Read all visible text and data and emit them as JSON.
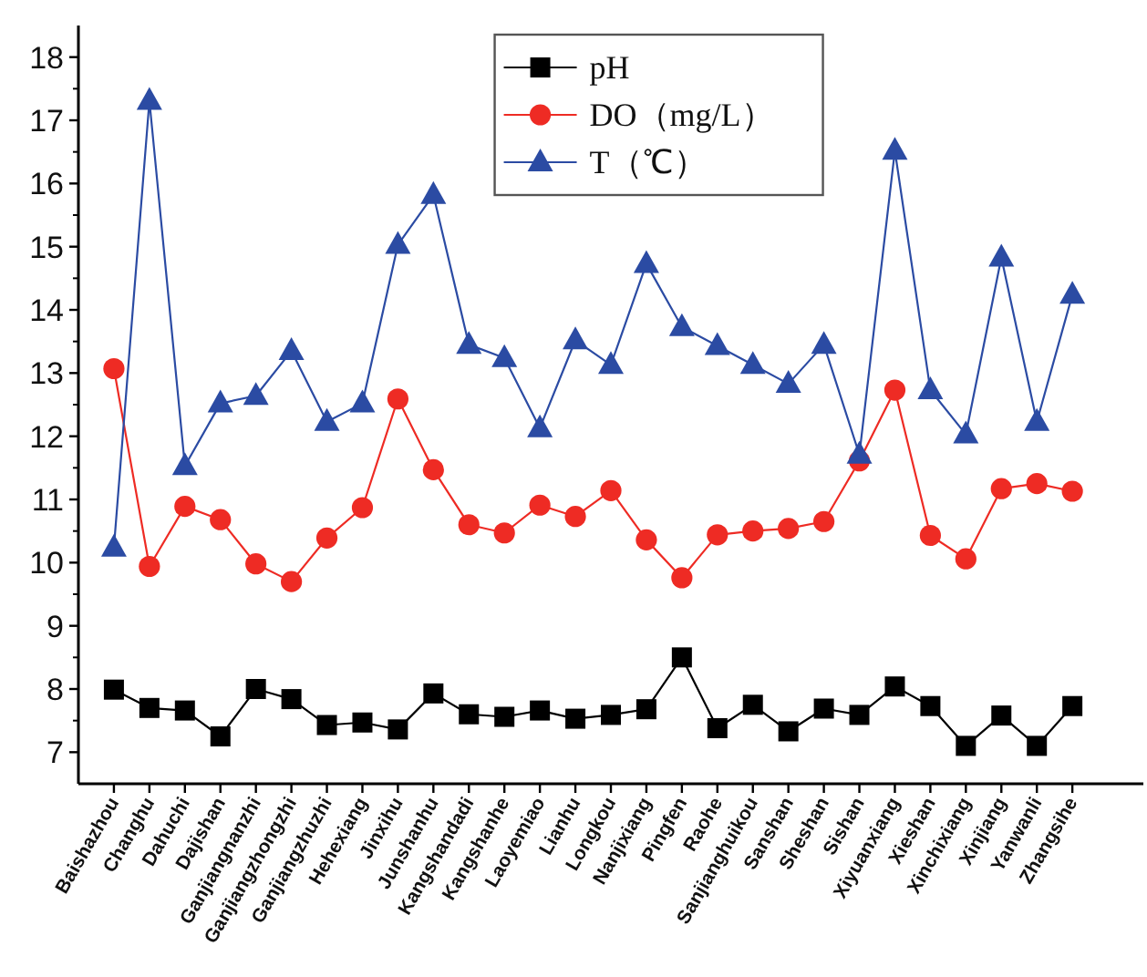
{
  "chart_data": {
    "type": "line",
    "categories": [
      "Baishazhou",
      "Changhu",
      "Dahuchi",
      "Dajishan",
      "Ganjiangnanzhi",
      "Ganjiangzhongzhi",
      "Ganjiangzhuzhi",
      "Hehexiang",
      "Jinxihu",
      "Junshanhu",
      "Kangshandadi",
      "Kangshanhe",
      "Laoyemiao",
      "Lianhu",
      "Longkou",
      "Nanjixiang",
      "Pingfen",
      "Raohe",
      "Sanjianghuikou",
      "Sanshan",
      "Sheshan",
      "Sishan",
      "Xiyuanxiang",
      "Xieshan",
      "Xinchixiang",
      "Xinjiang",
      "Yanwanli",
      "Zhangsihe"
    ],
    "series": [
      {
        "name": "pH",
        "color": "#000000",
        "marker": "square",
        "values": [
          7.99,
          7.7,
          7.66,
          7.25,
          8.0,
          7.84,
          7.43,
          7.47,
          7.36,
          7.93,
          7.6,
          7.56,
          7.66,
          7.53,
          7.59,
          7.68,
          8.5,
          7.38,
          7.75,
          7.33,
          7.69,
          7.59,
          8.04,
          7.73,
          7.1,
          7.58,
          7.1,
          7.73
        ]
      },
      {
        "name": "DO（mg/L）",
        "color": "#ee2b24",
        "marker": "circle",
        "values": [
          13.07,
          9.94,
          10.89,
          10.68,
          9.98,
          9.7,
          10.39,
          10.87,
          12.59,
          11.47,
          10.6,
          10.47,
          10.91,
          10.73,
          11.14,
          10.36,
          9.76,
          10.44,
          10.5,
          10.54,
          10.65,
          11.61,
          12.73,
          10.43,
          10.06,
          11.17,
          11.25,
          11.13
        ]
      },
      {
        "name": "T（℃）",
        "color": "#2b4ba3",
        "marker": "triangle",
        "values": [
          10.24,
          17.31,
          11.53,
          12.52,
          12.64,
          13.35,
          12.23,
          12.52,
          15.03,
          15.82,
          13.45,
          13.24,
          12.13,
          13.52,
          13.13,
          14.73,
          13.73,
          13.43,
          13.13,
          12.83,
          13.45,
          11.71,
          16.52,
          12.73,
          12.03,
          14.83,
          12.23,
          14.24
        ]
      }
    ],
    "ylim": [
      6.5,
      18.5
    ],
    "yticks": [
      7,
      8,
      9,
      10,
      11,
      12,
      13,
      14,
      15,
      16,
      17,
      18
    ],
    "grid": false,
    "legend": "top",
    "line_style": "solid"
  }
}
